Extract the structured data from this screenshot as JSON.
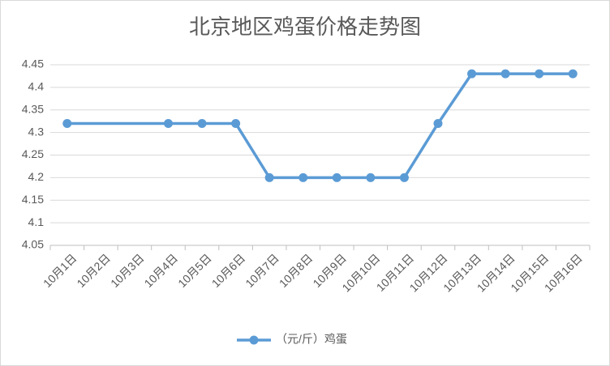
{
  "chart_data": {
    "type": "line",
    "title": "北京地区鸡蛋价格走势图",
    "categories": [
      "10月1日",
      "10月2日",
      "10月3日",
      "10月4日",
      "10月5日",
      "10月6日",
      "10月7日",
      "10月8日",
      "10月9日",
      "10月10日",
      "10月11日",
      "10月12日",
      "10月13日",
      "10月14日",
      "10月15日",
      "10月16日"
    ],
    "series": [
      {
        "name": "（元/斤）鸡蛋",
        "color": "#5b9bd5",
        "values": [
          4.32,
          null,
          null,
          4.32,
          4.32,
          4.32,
          4.2,
          4.2,
          4.2,
          4.2,
          4.2,
          4.32,
          4.43,
          4.43,
          4.43,
          4.43
        ]
      }
    ],
    "span_gaps": true,
    "ylim": [
      4.05,
      4.45
    ],
    "yticks": [
      4.05,
      4.1,
      4.15,
      4.2,
      4.25,
      4.3,
      4.35,
      4.4,
      4.45
    ],
    "grid": true,
    "legend": "bottom"
  }
}
